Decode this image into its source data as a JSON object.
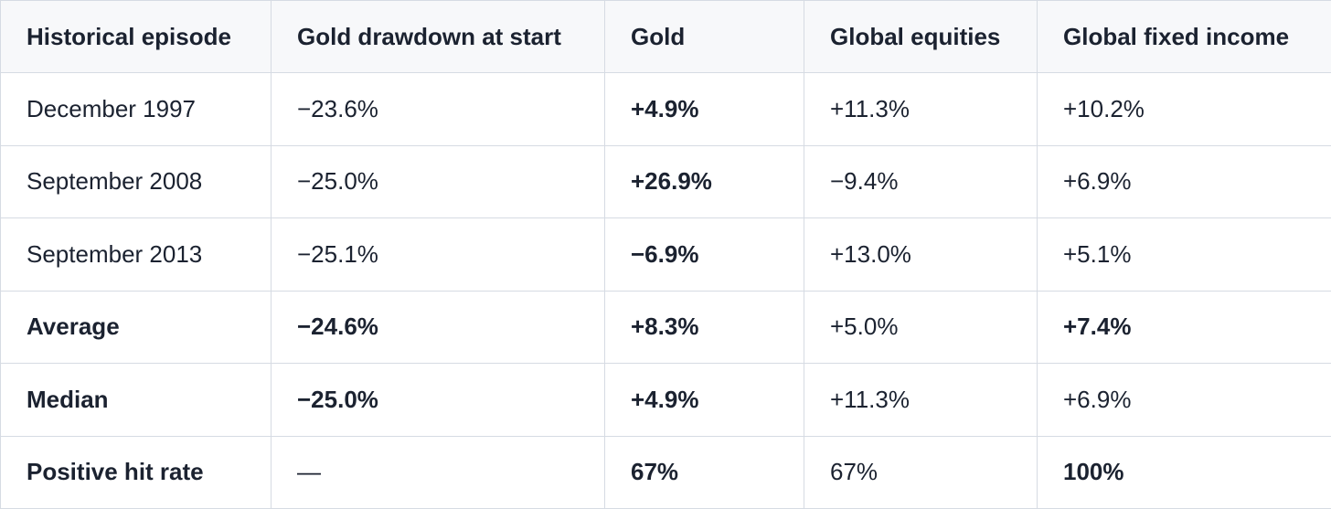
{
  "table": {
    "headers": [
      "Historical episode",
      "Gold drawdown at start",
      "Gold",
      "Global equities",
      "Global fixed income"
    ],
    "rows": [
      [
        "December 1997",
        "−23.6%",
        "+4.9%",
        "+11.3%",
        "+10.2%"
      ],
      [
        "September 2008",
        "−25.0%",
        "+26.9%",
        "−9.4%",
        "+6.9%"
      ],
      [
        "September 2013",
        "−25.1%",
        "−6.9%",
        "+13.0%",
        "+5.1%"
      ],
      [
        "Average",
        "−24.6%",
        "+8.3%",
        "+5.0%",
        "+7.4%"
      ],
      [
        "Median",
        "−25.0%",
        "+4.9%",
        "+11.3%",
        "+6.9%"
      ],
      [
        "Positive hit rate",
        "—",
        "67%",
        "67%",
        "100%"
      ]
    ]
  }
}
